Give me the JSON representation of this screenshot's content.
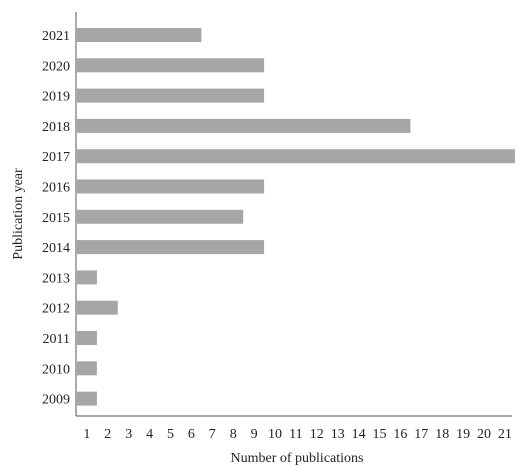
{
  "chart_data": {
    "type": "bar",
    "orientation": "horizontal",
    "categories": [
      "2021",
      "2020",
      "2019",
      "2018",
      "2017",
      "2016",
      "2015",
      "2014",
      "2013",
      "2012",
      "2011",
      "2010",
      "2009"
    ],
    "values": [
      6,
      9,
      9,
      16,
      21,
      9,
      8,
      9,
      1,
      2,
      1,
      1,
      1
    ],
    "xlabel": "Number of publications",
    "ylabel": "Publication year",
    "x_ticks": [
      1,
      2,
      3,
      4,
      5,
      6,
      7,
      8,
      9,
      10,
      11,
      12,
      13,
      14,
      15,
      16,
      17,
      18,
      19,
      20,
      21
    ],
    "xlim": [
      0,
      21
    ],
    "grid": false,
    "bar_color": "#a6a6a6"
  }
}
